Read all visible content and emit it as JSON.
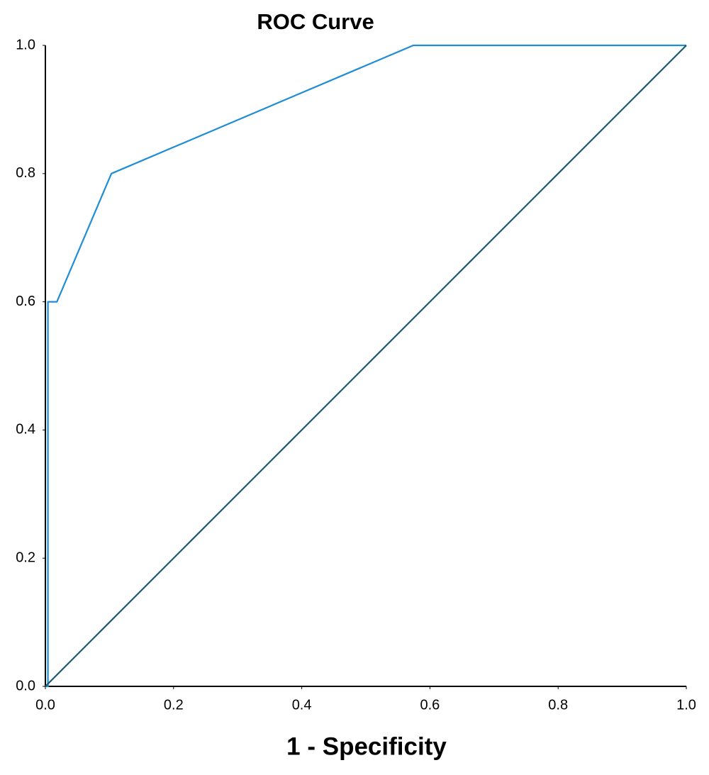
{
  "chart_data": {
    "type": "line",
    "title": "ROC Curve",
    "x_label": "1 - Specificity",
    "series": [
      {
        "color": "#1f8dd6",
        "x": [
          0,
          0.004,
          0.004,
          0.018,
          0.103,
          0.574,
          1.0
        ],
        "values": [
          0,
          0,
          0.6,
          0.6,
          0.8,
          1.0,
          1.0
        ]
      },
      {
        "color": "#1a5a6a",
        "x": [
          0,
          1.0
        ],
        "values": [
          0,
          1.0
        ]
      }
    ],
    "xlim": [
      0,
      1.0
    ],
    "ylim": [
      0,
      1.0
    ],
    "xticks": [
      {
        "value": 0,
        "label": "0.0"
      },
      0.2,
      0.4,
      0.6,
      0.8,
      {
        "value": 1.0,
        "label": "1.0"
      }
    ],
    "yticks": [
      {
        "value": 0,
        "label": "0.0"
      },
      0.2,
      0.4,
      0.6,
      0.8,
      {
        "value": 1.0,
        "label": "1.0"
      }
    ],
    "grid": false
  }
}
